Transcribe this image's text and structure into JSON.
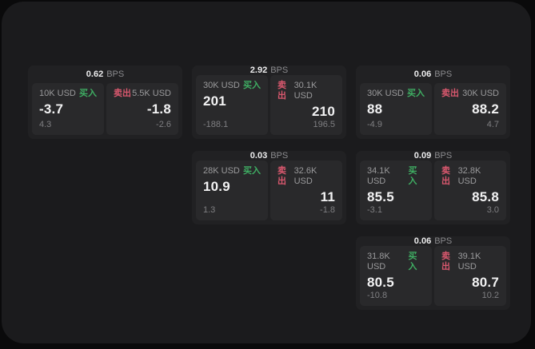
{
  "labels": {
    "bps": "BPS",
    "buy": "买入",
    "sell": "卖出"
  },
  "colors": {
    "buy": "#3fae63",
    "sell": "#d9586e",
    "window_bg": "#1b1b1d",
    "card_bg": "#212123",
    "panel_bg": "#29292b"
  },
  "cards": [
    {
      "bps": "0.62",
      "buy": {
        "amount": "10K USD",
        "value": "-3.7",
        "delta": "4.3"
      },
      "sell": {
        "amount": "5.5K USD",
        "value": "-1.8",
        "delta": "-2.6"
      }
    },
    {
      "bps": "2.92",
      "buy": {
        "amount": "30K USD",
        "value": "201",
        "delta": "-188.1"
      },
      "sell": {
        "amount": "30.1K USD",
        "value": "210",
        "delta": "196.5"
      }
    },
    {
      "bps": "0.06",
      "buy": {
        "amount": "30K USD",
        "value": "88",
        "delta": "-4.9"
      },
      "sell": {
        "amount": "30K USD",
        "value": "88.2",
        "delta": "4.7"
      }
    },
    {
      "bps": "0.03",
      "buy": {
        "amount": "28K USD",
        "value": "10.9",
        "delta": "1.3"
      },
      "sell": {
        "amount": "32.6K USD",
        "value": "11",
        "delta": "-1.8"
      }
    },
    {
      "bps": "0.09",
      "buy": {
        "amount": "34.1K USD",
        "value": "85.5",
        "delta": "-3.1"
      },
      "sell": {
        "amount": "32.8K USD",
        "value": "85.8",
        "delta": "3.0"
      }
    },
    {
      "bps": "0.06",
      "buy": {
        "amount": "31.8K USD",
        "value": "80.5",
        "delta": "-10.8"
      },
      "sell": {
        "amount": "39.1K USD",
        "value": "80.7",
        "delta": "10.2"
      }
    }
  ]
}
